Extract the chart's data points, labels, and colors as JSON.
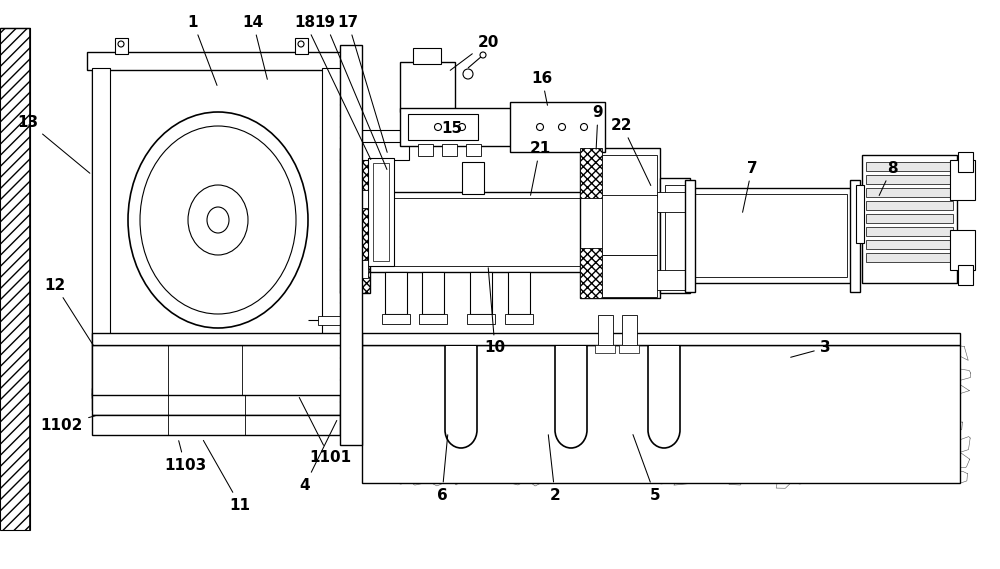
{
  "bg_color": "#ffffff",
  "line_color": "#000000",
  "figsize": [
    10.0,
    5.69
  ],
  "dpi": 100,
  "annotations": [
    [
      "1",
      193,
      22,
      218,
      88
    ],
    [
      "14",
      253,
      22,
      268,
      82
    ],
    [
      "18",
      305,
      22,
      372,
      162
    ],
    [
      "19",
      325,
      22,
      388,
      172
    ],
    [
      "17",
      348,
      22,
      388,
      155
    ],
    [
      "20",
      488,
      42,
      448,
      72
    ],
    [
      "15",
      452,
      128,
      452,
      128
    ],
    [
      "16",
      542,
      78,
      548,
      108
    ],
    [
      "9",
      598,
      112,
      596,
      152
    ],
    [
      "21",
      540,
      148,
      530,
      198
    ],
    [
      "22",
      622,
      125,
      652,
      188
    ],
    [
      "7",
      752,
      168,
      742,
      215
    ],
    [
      "8",
      892,
      168,
      878,
      198
    ],
    [
      "10",
      495,
      348,
      488,
      265
    ],
    [
      "3",
      825,
      348,
      788,
      358
    ],
    [
      "2",
      555,
      495,
      548,
      432
    ],
    [
      "5",
      655,
      495,
      632,
      432
    ],
    [
      "6",
      442,
      495,
      448,
      432
    ],
    [
      "4",
      305,
      485,
      338,
      418
    ],
    [
      "11",
      240,
      505,
      202,
      438
    ],
    [
      "1101",
      330,
      458,
      298,
      395
    ],
    [
      "1102",
      62,
      425,
      98,
      415
    ],
    [
      "1103",
      185,
      465,
      178,
      438
    ],
    [
      "12",
      55,
      285,
      95,
      348
    ],
    [
      "13",
      28,
      122,
      92,
      175
    ]
  ]
}
